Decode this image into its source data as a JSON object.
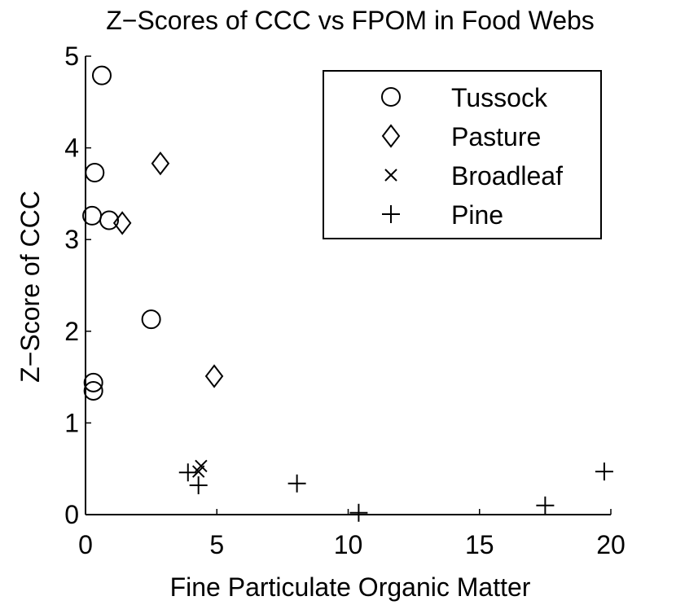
{
  "chart_data": {
    "type": "scatter",
    "title": "Z−Scores of CCC vs FPOM in Food Webs",
    "xlabel": "Fine Particulate Organic Matter",
    "ylabel": "Z−Score of CCC",
    "xlim": [
      0,
      20
    ],
    "ylim": [
      0,
      5
    ],
    "xticks": [
      0,
      5,
      10,
      15,
      20
    ],
    "yticks": [
      0,
      1,
      2,
      3,
      4,
      5
    ],
    "grid": false,
    "legend_position": "top-right",
    "series": [
      {
        "name": "Tussock",
        "marker": "circle",
        "points": [
          {
            "x": 0.62,
            "y": 4.79
          },
          {
            "x": 0.35,
            "y": 3.73
          },
          {
            "x": 0.25,
            "y": 3.26
          },
          {
            "x": 0.9,
            "y": 3.21
          },
          {
            "x": 2.5,
            "y": 2.13
          },
          {
            "x": 0.3,
            "y": 1.44
          },
          {
            "x": 0.3,
            "y": 1.35
          }
        ]
      },
      {
        "name": "Pasture",
        "marker": "diamond",
        "points": [
          {
            "x": 2.85,
            "y": 3.83
          },
          {
            "x": 1.4,
            "y": 3.18
          },
          {
            "x": 4.9,
            "y": 1.51
          }
        ]
      },
      {
        "name": "Broadleaf",
        "marker": "x",
        "points": [
          {
            "x": 4.4,
            "y": 0.53
          },
          {
            "x": 4.3,
            "y": 0.47
          }
        ]
      },
      {
        "name": "Pine",
        "marker": "plus",
        "points": [
          {
            "x": 3.9,
            "y": 0.46
          },
          {
            "x": 4.3,
            "y": 0.32
          },
          {
            "x": 8.05,
            "y": 0.34
          },
          {
            "x": 10.4,
            "y": 0.02
          },
          {
            "x": 17.5,
            "y": 0.1
          },
          {
            "x": 19.75,
            "y": 0.47
          }
        ]
      }
    ]
  }
}
